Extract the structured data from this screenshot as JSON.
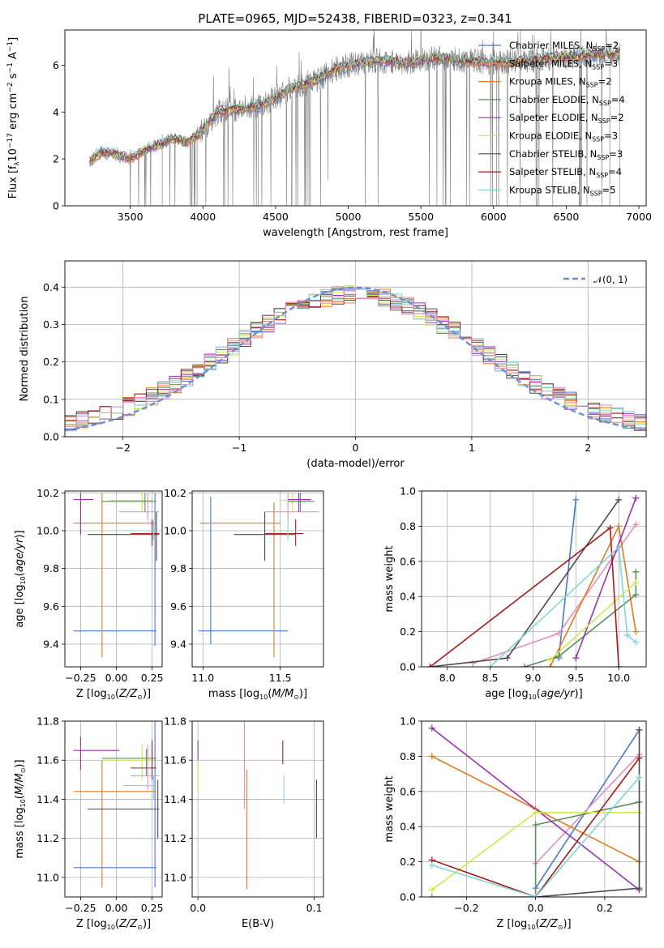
{
  "colors": {
    "Chabrier MILES": "#4878cf",
    "Salpeter MILES": "#e6846c",
    "Kroupa MILES": "#e07b1e",
    "Chabrier ELODIE": "#5a8f5a",
    "Salpeter ELODIE": "#9a2fb5",
    "Kroupa ELODIE": "#cde94e",
    "Chabrier STELIB": "#4d4d4d",
    "Salpeter STELIB": "#a31c1c",
    "Kroupa STELIB": "#7fd6dc",
    "normal": "#6a8fd2",
    "pink": "#e48fbf",
    "spectrum": "#808080"
  },
  "chart_data": [
    {
      "type": "line",
      "title": "PLATE=0965, MJD=52438, FIBERID=0323, z=0.341",
      "xlabel": "wavelength [Angstrom, rest frame]",
      "ylabel": "Flux [f_λ10^-17 erg cm^-2 s^-1 A^-1]",
      "xlim": [
        3050,
        7050
      ],
      "ylim": [
        0,
        7.5
      ],
      "xticks": [
        "3500",
        "4000",
        "4500",
        "5000",
        "5500",
        "6000",
        "6500",
        "7000"
      ],
      "yticks": [
        "0",
        "2",
        "4",
        "6"
      ],
      "legend_position": "upper-right",
      "spectrum_trend": {
        "x": [
          3220,
          3300,
          3400,
          3500,
          3600,
          3700,
          3800,
          3900,
          4000,
          4100,
          4200,
          4300,
          4400,
          4500,
          4600,
          4700,
          4800,
          4900,
          5000,
          5200,
          5400,
          5600,
          5800,
          6000,
          6200,
          6400,
          6600,
          6870
        ],
        "y": [
          1.9,
          2.3,
          2.2,
          2.0,
          2.4,
          2.6,
          2.9,
          2.7,
          3.2,
          4.0,
          4.1,
          4.2,
          4.3,
          4.6,
          5.0,
          5.2,
          5.4,
          5.8,
          6.0,
          6.2,
          6.1,
          6.3,
          6.2,
          6.1,
          6.2,
          6.3,
          6.4,
          6.5
        ]
      },
      "series": [
        {
          "name": "Chabrier MILES",
          "nssp": "2"
        },
        {
          "name": "Salpeter MILES",
          "nssp": "3"
        },
        {
          "name": "Kroupa MILES",
          "nssp": "2"
        },
        {
          "name": "Chabrier ELODIE",
          "nssp": "4"
        },
        {
          "name": "Salpeter ELODIE",
          "nssp": "2"
        },
        {
          "name": "Kroupa ELODIE",
          "nssp": "3"
        },
        {
          "name": "Chabrier STELIB",
          "nssp": "3"
        },
        {
          "name": "Salpeter STELIB",
          "nssp": "4"
        },
        {
          "name": "Kroupa STELIB",
          "nssp": "5"
        }
      ]
    },
    {
      "type": "line",
      "xlabel": "(data-model)/error",
      "ylabel": "Normed distribution",
      "xlim": [
        -2.5,
        2.5
      ],
      "ylim": [
        0,
        0.47
      ],
      "xticks": [
        "−2",
        "−1",
        "0",
        "1",
        "2"
      ],
      "yticks": [
        "0.0",
        "0.1",
        "0.2",
        "0.3",
        "0.4"
      ],
      "grid": true,
      "legend": "𝒩(0, 1)",
      "legend_position": "upper-right",
      "bin_width": 0.1,
      "bin_start": -2.5
    },
    {
      "type": "scatter",
      "xlabel": "Z [log10(Z/Z⊙)]",
      "ylabel": "age [log10(age/yr)]",
      "xlim": [
        -0.36,
        0.32
      ],
      "ylim": [
        9.28,
        10.21
      ],
      "xticks": [
        "−0.25",
        "0.00",
        "0.25"
      ],
      "yticks": [
        "9.4",
        "9.6",
        "9.8",
        "10.0",
        "10.2"
      ],
      "grid": true
    },
    {
      "type": "scatter",
      "xlabel": "mass [log10(M/M⊙)]",
      "xlim": [
        10.93,
        11.78
      ],
      "ylim": [
        9.28,
        10.21
      ],
      "xticks": [
        "11.0",
        "11.5"
      ],
      "yticks": [
        "9.4",
        "9.6",
        "9.8",
        "10.0",
        "10.2"
      ],
      "grid": true
    },
    {
      "type": "line",
      "xlabel": "age [log10(age/yr)]",
      "ylabel": "mass weight",
      "xlim": [
        7.7,
        10.32
      ],
      "ylim": [
        0,
        1
      ],
      "xticks": [
        "8.0",
        "8.5",
        "9.0",
        "9.5",
        "10.0"
      ],
      "yticks": [
        "0.0",
        "0.2",
        "0.4",
        "0.6",
        "0.8",
        "1.0"
      ],
      "grid": true
    },
    {
      "type": "scatter",
      "xlabel": "Z [log10(Z/Z⊙)]",
      "ylabel": "mass [log10(M/M⊙)]",
      "xlim": [
        -0.36,
        0.32
      ],
      "ylim": [
        10.9,
        11.8
      ],
      "xticks": [
        "−0.25",
        "0.00",
        "0.25"
      ],
      "yticks": [
        "11.0",
        "11.2",
        "11.4",
        "11.6",
        "11.8"
      ],
      "grid": true
    },
    {
      "type": "scatter",
      "xlabel": "E(B-V)",
      "xlim": [
        -0.005,
        0.108
      ],
      "ylim": [
        10.9,
        11.8
      ],
      "xticks": [
        "0.0",
        "0.1"
      ],
      "yticks": [
        "11.0",
        "11.2",
        "11.4",
        "11.6",
        "11.8"
      ],
      "grid": true
    },
    {
      "type": "line",
      "xlabel": "Z [log10(Z/Z⊙)]",
      "ylabel": "mass weight",
      "xlim": [
        -0.33,
        0.32
      ],
      "ylim": [
        0,
        1
      ],
      "xticks": [
        "−0.2",
        "0.0",
        "0.2"
      ],
      "yticks": [
        "0.0",
        "0.2",
        "0.4",
        "0.6",
        "0.8",
        "1.0"
      ],
      "grid": true
    }
  ]
}
